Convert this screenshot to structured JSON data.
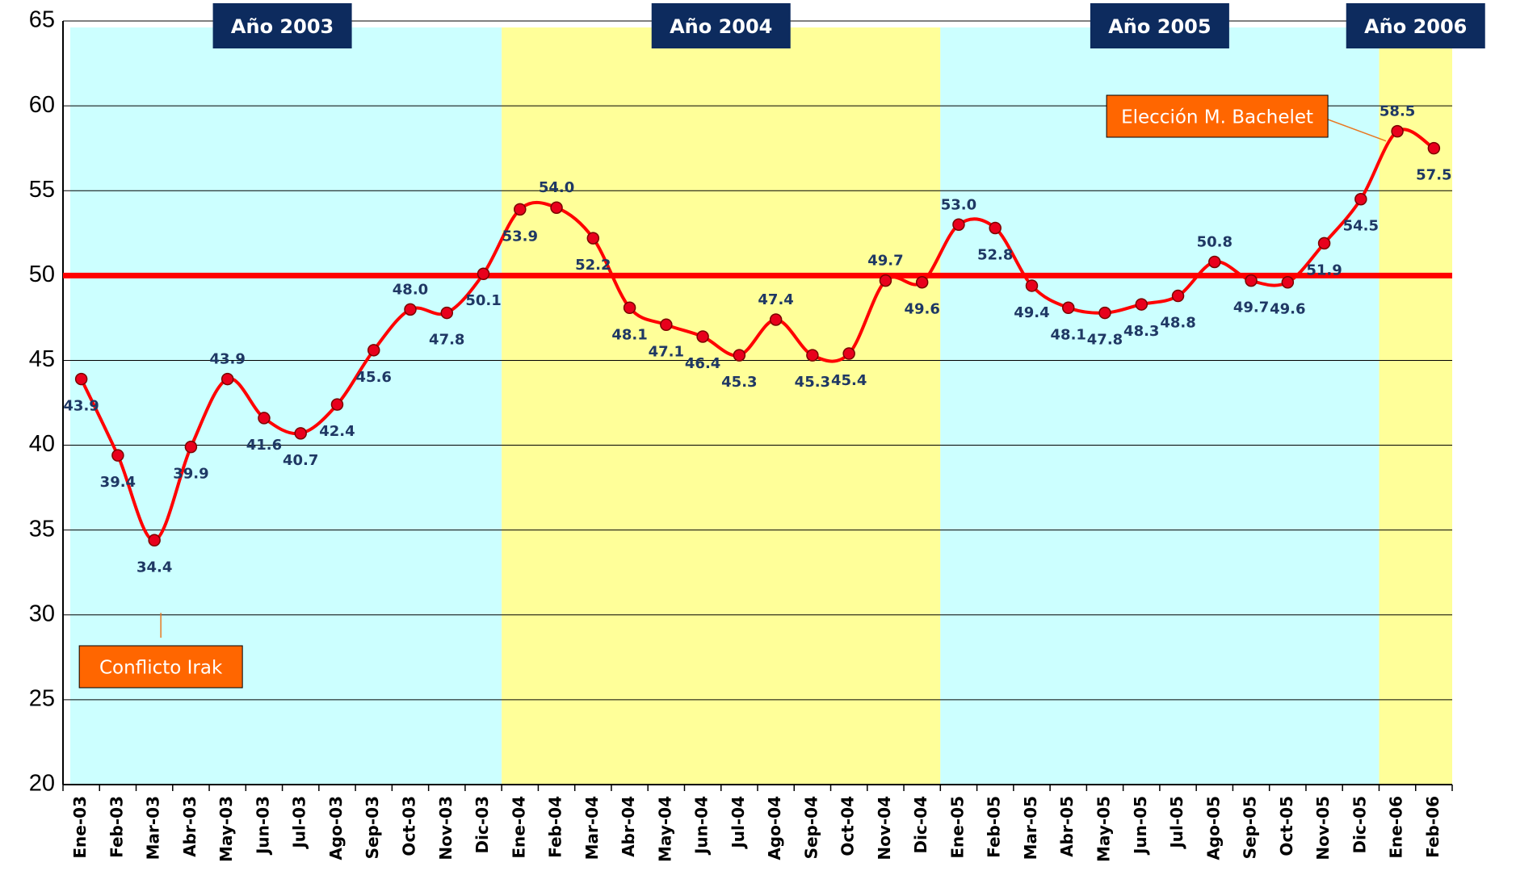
{
  "chart_data": {
    "type": "line",
    "categories": [
      "Ene-03",
      "Feb-03",
      "Mar-03",
      "Abr-03",
      "May-03",
      "Jun-03",
      "Jul-03",
      "Ago-03",
      "Sep-03",
      "Oct-03",
      "Nov-03",
      "Dic-03",
      "Ene-04",
      "Feb-04",
      "Mar-04",
      "Abr-04",
      "May-04",
      "Jun-04",
      "Jul-04",
      "Ago-04",
      "Sep-04",
      "Oct-04",
      "Nov-04",
      "Dic-04",
      "Ene-05",
      "Feb-05",
      "Mar-05",
      "Abr-05",
      "May-05",
      "Jun-05",
      "Jul-05",
      "Ago-05",
      "Sep-05",
      "Oct-05",
      "Nov-05",
      "Dic-05",
      "Ene-06",
      "Feb-06"
    ],
    "values": [
      43.9,
      39.4,
      34.4,
      39.9,
      43.9,
      41.6,
      40.7,
      42.4,
      45.6,
      48.0,
      47.8,
      50.1,
      53.9,
      54.0,
      52.2,
      48.1,
      47.1,
      46.4,
      45.3,
      47.4,
      45.3,
      45.4,
      49.7,
      49.6,
      53.0,
      52.8,
      49.4,
      48.1,
      47.8,
      48.3,
      48.8,
      50.8,
      49.7,
      49.6,
      51.9,
      54.5,
      58.5,
      57.5
    ],
    "value_labels": [
      "43.9",
      "39.4",
      "34.4",
      "39.9",
      "43.9",
      "41.6",
      "40.7",
      "42.4",
      "45.6",
      "48.0",
      "47.8",
      "50.1",
      "53.9",
      "54.0",
      "52.2",
      "48.1",
      "47.1",
      "46.4",
      "45.3",
      "47.4",
      "45.3",
      "45.4",
      "49.7",
      "49.6",
      "53.0",
      "52.8",
      "49.4",
      "48.1",
      "47.8",
      "48.3",
      "48.8",
      "50.8",
      "49.7",
      "49.6",
      "51.9",
      "54.5",
      "58.5",
      "57.5"
    ],
    "color": "#ff0000",
    "marker_color": "#e8001c",
    "ylim": [
      20,
      65
    ],
    "yticks": [
      20,
      25,
      30,
      35,
      40,
      45,
      50,
      55,
      60,
      65
    ],
    "grid": true,
    "reference_line": {
      "value": 50,
      "color": "#ff0000"
    },
    "periods": [
      {
        "label": "Año 2003",
        "from": "Ene-03",
        "to": "Dic-03",
        "color": "#ccffff"
      },
      {
        "label": "Año 2004",
        "from": "Ene-04",
        "to": "Dic-04",
        "color": "#ffff99"
      },
      {
        "label": "Año 2005",
        "from": "Ene-05",
        "to": "Dic-05",
        "color": "#ccffff"
      },
      {
        "label": "Año 2006",
        "from": "Ene-06",
        "to": "Feb-06",
        "color": "#ffff99"
      }
    ],
    "annotations": [
      {
        "text": "Conflicto Irak",
        "category": "Mar-03"
      },
      {
        "text": "Elección M. Bachelet",
        "category": "Ene-06"
      }
    ]
  }
}
